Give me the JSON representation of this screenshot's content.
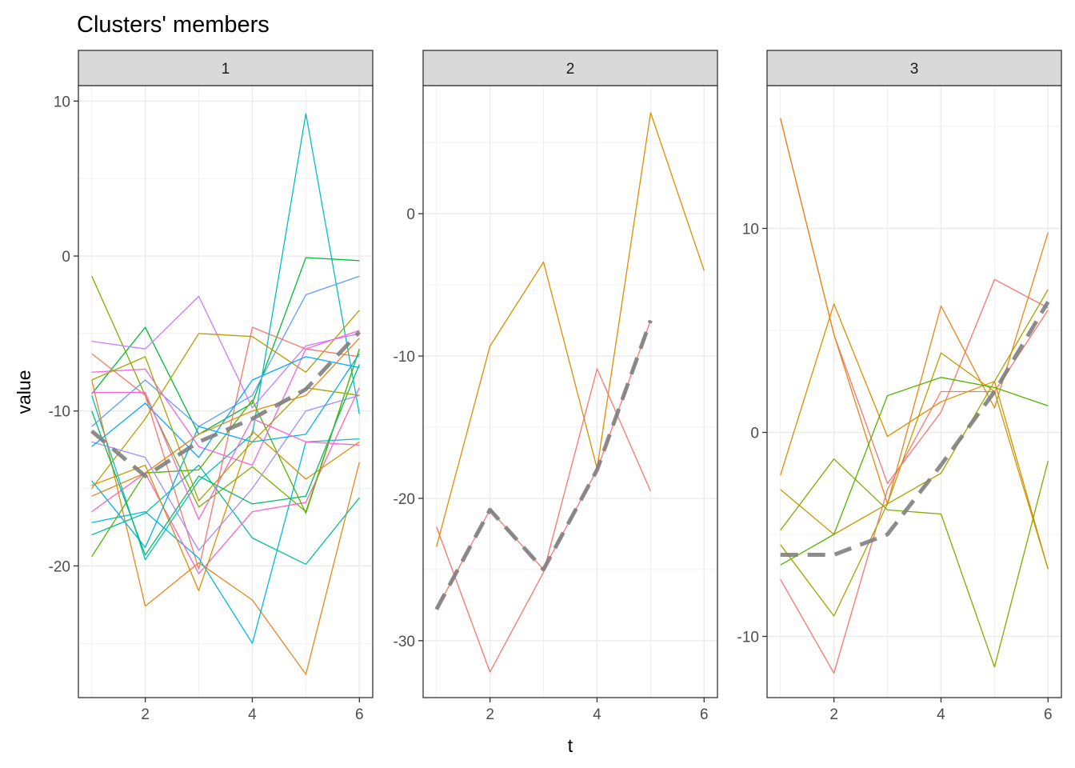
{
  "chart_data": {
    "type": "line",
    "title": "Clusters' members",
    "xlabel": "t",
    "ylabel": "value",
    "grid": true,
    "legend": "none",
    "panels": [
      {
        "strip": "1",
        "xlim": [
          0.75,
          6.25
        ],
        "ylim": [
          -28.5,
          11.0
        ],
        "x_ticks": [
          2,
          4,
          6
        ],
        "y_ticks": [
          10,
          0,
          -10,
          -20
        ],
        "x": [
          1,
          2,
          3,
          4,
          5,
          6
        ],
        "series": [
          {
            "color": "#00BFC4",
            "values": [
              -9.0,
              -19.6,
              -14.5,
              -11.5,
              9.2,
              -10.2
            ]
          },
          {
            "color": "#00BA38",
            "values": [
              -8.9,
              -4.6,
              -11.5,
              -9.5,
              -0.1,
              -0.3
            ]
          },
          {
            "color": "#619CFF",
            "values": [
              -11.0,
              -8.0,
              -11.0,
              -9.0,
              -2.5,
              -1.3
            ]
          },
          {
            "color": "#7CAE00",
            "values": [
              -1.3,
              -9.0,
              -16.2,
              -13.6,
              -16.5,
              -6.0
            ]
          },
          {
            "color": "#C77CFF",
            "values": [
              -5.5,
              -6.0,
              -2.6,
              -9.8,
              -5.8,
              -5.0
            ]
          },
          {
            "color": "#B79F00",
            "values": [
              -15.0,
              -10.5,
              -5.0,
              -5.2,
              -7.5,
              -3.5
            ]
          },
          {
            "color": "#F8766D",
            "values": [
              -6.3,
              -9.0,
              -20.2,
              -4.6,
              -6.0,
              -6.5
            ]
          },
          {
            "color": "#E7861B",
            "values": [
              -8.0,
              -22.6,
              -19.8,
              -22.2,
              -27.0,
              -13.3
            ]
          },
          {
            "color": "#00B9E3",
            "values": [
              -17.2,
              -16.5,
              -19.5,
              -25.0,
              -12.0,
              -11.8
            ]
          },
          {
            "color": "#00C19F",
            "values": [
              -18.0,
              -16.6,
              -13.5,
              -18.2,
              -19.9,
              -15.6
            ]
          },
          {
            "color": "#FF61C3",
            "values": [
              -16.5,
              -14.0,
              -20.5,
              -16.5,
              -15.9,
              -8.5
            ]
          },
          {
            "color": "#53B400",
            "values": [
              -19.4,
              -14.0,
              -13.8,
              -9.3,
              -16.6,
              -6.0
            ]
          },
          {
            "color": "#DB8E00",
            "values": [
              -14.8,
              -13.5,
              -21.6,
              -11.3,
              -14.4,
              -12.0
            ]
          },
          {
            "color": "#A58AFF",
            "values": [
              -12.0,
              -13.0,
              -19.0,
              -15.0,
              -10.0,
              -9.0
            ]
          },
          {
            "color": "#F564E3",
            "values": [
              -7.5,
              -7.3,
              -12.3,
              -13.5,
              -6.0,
              -4.8
            ]
          },
          {
            "color": "#00A9FF",
            "values": [
              -12.3,
              -9.5,
              -13.0,
              -8.0,
              -6.5,
              -7.2
            ]
          },
          {
            "color": "#00B0F6",
            "values": [
              -14.5,
              -18.8,
              -11.0,
              -12.0,
              -11.5,
              -6.3
            ]
          },
          {
            "color": "#00BE67",
            "values": [
              -10.0,
              -19.3,
              -14.2,
              -16.0,
              -15.5,
              -7.0
            ]
          },
          {
            "color": "#FD61D1",
            "values": [
              -8.8,
              -8.8,
              -17.0,
              -10.5,
              -12.0,
              -12.2
            ]
          },
          {
            "color": "#A3A500",
            "values": [
              -8.0,
              -6.5,
              -15.8,
              -12.0,
              -8.5,
              -9.0
            ]
          },
          {
            "color": "#E68613",
            "values": [
              -15.5,
              -14.0,
              -11.5,
              -10.0,
              -9.0,
              -5.3
            ]
          }
        ],
        "centroid": {
          "color": "#808080",
          "values": [
            -11.3,
            -14.2,
            -12.0,
            -10.5,
            -8.6,
            -4.9
          ]
        }
      },
      {
        "strip": "2",
        "xlim": [
          0.75,
          6.25
        ],
        "ylim": [
          -34.0,
          9.0
        ],
        "x_ticks": [
          2,
          4,
          6
        ],
        "y_ticks": [
          0,
          -10,
          -20,
          -30
        ],
        "x": [
          1,
          2,
          3,
          4,
          5,
          6
        ],
        "series": [
          {
            "color": "#DB8E00",
            "values": [
              -23.4,
              -9.3,
              -3.4,
              -17.9,
              7.1,
              -4.0
            ]
          },
          {
            "color": "#F8766D",
            "values": [
              -22.0,
              -32.2,
              -25.2,
              -10.9,
              -19.5,
              null
            ]
          },
          {
            "color": "#F8766D",
            "values": [
              -27.8,
              -20.8,
              -25.0,
              -18.0,
              -7.5,
              null
            ]
          }
        ],
        "centroid": {
          "color": "#808080",
          "values": [
            -27.8,
            -20.8,
            -25.0,
            -18.0,
            -7.5,
            null
          ]
        }
      },
      {
        "strip": "3",
        "xlim": [
          0.75,
          6.25
        ],
        "ylim": [
          -13.0,
          17.0
        ],
        "x_ticks": [
          2,
          4,
          6
        ],
        "y_ticks": [
          10,
          0,
          -10
        ],
        "x": [
          1,
          2,
          3,
          4,
          5,
          6
        ],
        "series": [
          {
            "color": "#F8766D",
            "values": [
              15.4,
              4.8,
              -2.5,
              1.0,
              7.5,
              6.1
            ]
          },
          {
            "color": "#E7861B",
            "values": [
              15.4,
              4.8,
              -3.5,
              6.2,
              1.2,
              9.8
            ]
          },
          {
            "color": "#F8766D",
            "values": [
              -7.2,
              -11.8,
              -2.8,
              2.0,
              2.0,
              6.0
            ]
          },
          {
            "color": "#DB8E00",
            "values": [
              -2.1,
              6.3,
              -0.2,
              1.5,
              2.5,
              -6.7
            ]
          },
          {
            "color": "#C49A00",
            "values": [
              -2.8,
              -5.0,
              -3.5,
              3.9,
              2.0,
              -6.7
            ]
          },
          {
            "color": "#7CAE00",
            "values": [
              -4.8,
              -1.3,
              -3.8,
              -4.0,
              -11.5,
              -1.4
            ]
          },
          {
            "color": "#53B400",
            "values": [
              -6.5,
              -5.0,
              1.8,
              2.7,
              2.2,
              1.3
            ]
          },
          {
            "color": "#A3A500",
            "values": [
              -5.5,
              -9.0,
              -3.5,
              -2.0,
              2.5,
              7.0
            ]
          }
        ],
        "centroid": {
          "color": "#808080",
          "values": [
            -6.0,
            -6.0,
            -5.0,
            -1.6,
            2.0,
            6.4
          ]
        }
      }
    ]
  }
}
